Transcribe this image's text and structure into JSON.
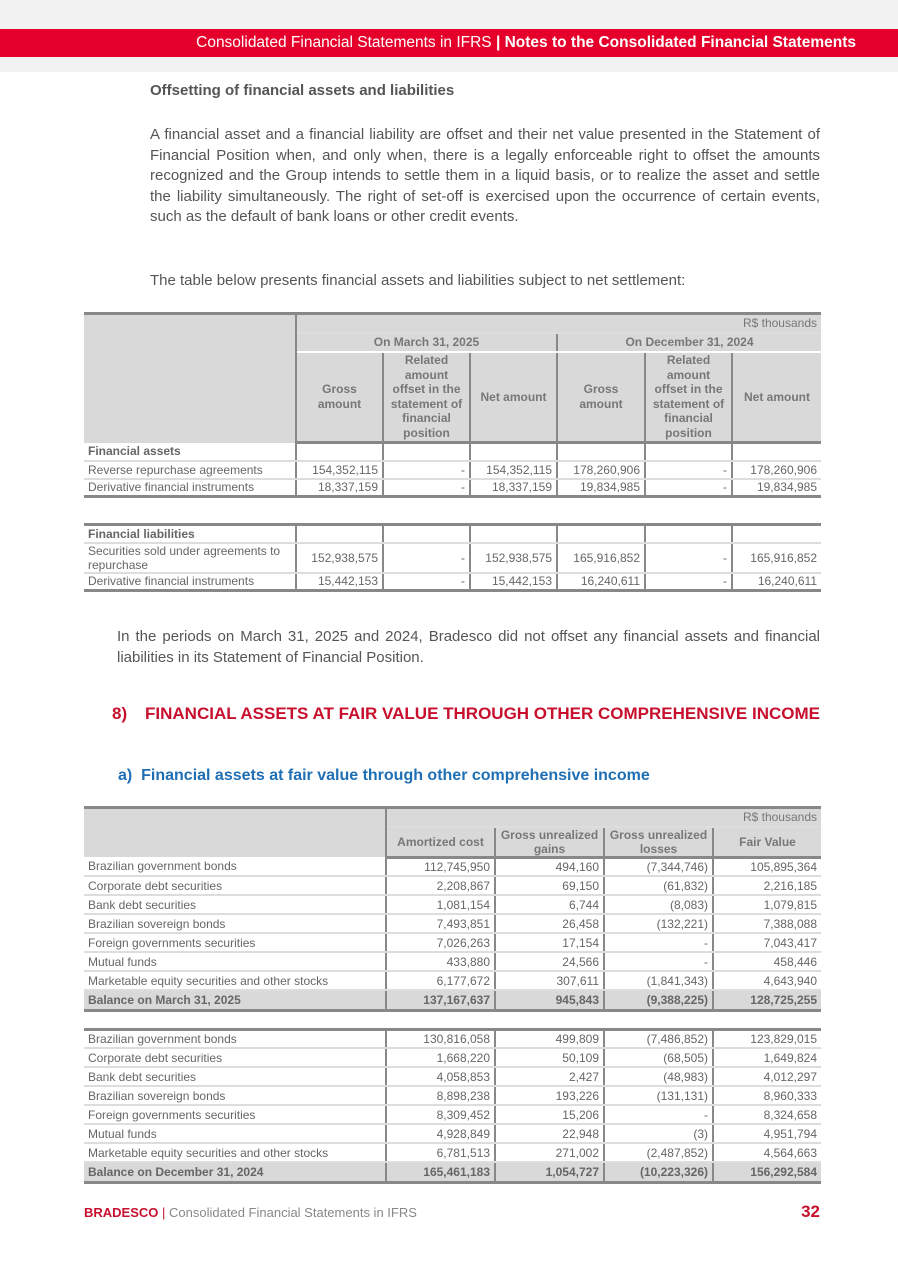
{
  "header": {
    "title_left": "Consolidated Financial Statements in IFRS",
    "separator": "|",
    "title_right": "Notes to the Consolidated Financial Statements",
    "accent": "#e4002b"
  },
  "offset": {
    "heading": "Offsetting of financial assets and liabilities",
    "para1": "A financial asset and a financial liability are offset and their net value presented in the Statement of Financial Position when, and only when, there is a legally enforceable right to offset the amounts recognized and the Group intends to settle them in a liquid basis, or to realize the asset and settle the liability simultaneously. The right of set-off is exercised upon the occurrence of certain events, such as the default of bank loans or other credit events.",
    "para2": "The table below presents financial assets and liabilities subject to net settlement:",
    "table": {
      "unit": "R$ thousands",
      "period1": "On March 31, 2025",
      "period2": "On December 31, 2024",
      "columns": [
        "Gross amount",
        "Related amount offset in the statement of financial position",
        "Net amount",
        "Gross amount",
        "Related amount offset in the statement of financial position",
        "Net amount"
      ],
      "assets_label": "Financial assets",
      "assets": [
        [
          "Reverse repurchase agreements",
          "154,352,115",
          "-",
          "154,352,115",
          "178,260,906",
          "-",
          "178,260,906"
        ],
        [
          "Derivative financial instruments",
          "18,337,159",
          "-",
          "18,337,159",
          "19,834,985",
          "-",
          "19,834,985"
        ]
      ],
      "liabilities_label": "Financial liabilities",
      "liabilities": [
        [
          "Securities sold under agreements to repurchase",
          "152,938,575",
          "-",
          "152,938,575",
          "165,916,852",
          "-",
          "165,916,852"
        ],
        [
          "Derivative financial instruments",
          "15,442,153",
          "-",
          "15,442,153",
          "16,240,611",
          "-",
          "16,240,611"
        ]
      ]
    },
    "para3": "In the periods on March 31, 2025 and 2024, Bradesco did not offset any financial assets and financial liabilities in its Statement of Financial Position."
  },
  "section8": {
    "number": "8)",
    "title": "FINANCIAL ASSETS AT FAIR VALUE THROUGH OTHER COMPREHENSIVE INCOME"
  },
  "section8a": {
    "letter": "a)",
    "title": "Financial assets at fair value through other comprehensive income"
  },
  "fvoci": {
    "unit": "R$ thousands",
    "columns": [
      "Amortized cost",
      "Gross unrealized gains",
      "Gross unrealized losses",
      "Fair Value"
    ],
    "block1": [
      [
        "Brazilian government bonds",
        "112,745,950",
        "494,160",
        "(7,344,746)",
        "105,895,364"
      ],
      [
        "Corporate debt securities",
        "2,208,867",
        "69,150",
        "(61,832)",
        "2,216,185"
      ],
      [
        "Bank debt securities",
        "1,081,154",
        "6,744",
        "(8,083)",
        "1,079,815"
      ],
      [
        "Brazilian sovereign bonds",
        "7,493,851",
        "26,458",
        "(132,221)",
        "7,388,088"
      ],
      [
        "Foreign governments securities",
        "7,026,263",
        "17,154",
        "-",
        "7,043,417"
      ],
      [
        "Mutual funds",
        "433,880",
        "24,566",
        "-",
        "458,446"
      ],
      [
        "Marketable equity securities and other stocks",
        "6,177,672",
        "307,611",
        "(1,841,343)",
        "4,643,940"
      ]
    ],
    "total1": [
      "Balance on March 31, 2025",
      "137,167,637",
      "945,843",
      "(9,388,225)",
      "128,725,255"
    ],
    "block2": [
      [
        "Brazilian government bonds",
        "130,816,058",
        "499,809",
        "(7,486,852)",
        "123,829,015"
      ],
      [
        "Corporate debt securities",
        "1,668,220",
        "50,109",
        "(68,505)",
        "1,649,824"
      ],
      [
        "Bank debt securities",
        "4,058,853",
        "2,427",
        "(48,983)",
        "4,012,297"
      ],
      [
        "Brazilian sovereign bonds",
        "8,898,238",
        "193,226",
        "(131,131)",
        "8,960,333"
      ],
      [
        "Foreign governments securities",
        "8,309,452",
        "15,206",
        "-",
        "8,324,658"
      ],
      [
        "Mutual funds",
        "4,928,849",
        "22,948",
        "(3)",
        "4,951,794"
      ],
      [
        "Marketable equity securities and other stocks",
        "6,781,513",
        "271,002",
        "(2,487,852)",
        "4,564,663"
      ]
    ],
    "total2": [
      "Balance on December 31, 2024",
      "165,461,183",
      "1,054,727",
      "(10,223,326)",
      "156,292,584"
    ]
  },
  "footer": {
    "brand": "BRADESCO",
    "separator": "|",
    "text": "Consolidated Financial Statements in IFRS",
    "page": "32"
  }
}
